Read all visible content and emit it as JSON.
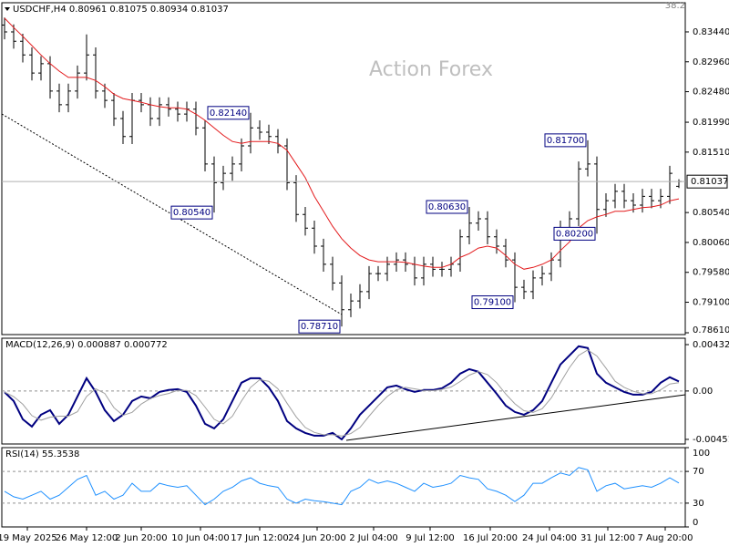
{
  "chart_data": [
    {
      "type": "ohlc",
      "title": "USDCHF,H4  0.80961 0.81075 0.80934 0.81037",
      "watermark": "Action Forex",
      "corner_label": "38.2",
      "color": "#000000",
      "xlim": [
        -0.3,
        74.7
      ],
      "xticks": [
        {
          "value": 2.5,
          "label": "19 May 2025"
        },
        {
          "value": 9,
          "label": "26 May 12:00"
        },
        {
          "value": 15,
          "label": "2 Jun 20:00"
        },
        {
          "value": 21.5,
          "label": "10 Jun 04:00"
        },
        {
          "value": 28,
          "label": "17 Jun 12:00"
        },
        {
          "value": 34.3,
          "label": "24 Jun 20:00"
        },
        {
          "value": 40.5,
          "label": "2 Jul 04:00"
        },
        {
          "value": 46.7,
          "label": "9 Jul 12:00"
        },
        {
          "value": 53.3,
          "label": "16 Jul 20:00"
        },
        {
          "value": 59.8,
          "label": "24 Jul 04:00"
        },
        {
          "value": 66.2,
          "label": "31 Jul 12:00"
        },
        {
          "value": 72.5,
          "label": "7 Aug 20:00"
        }
      ],
      "ylim": [
        0.78581,
        0.83908
      ],
      "yticks": [
        {
          "value": 0.8344,
          "label": "0.83440"
        },
        {
          "value": 0.8296,
          "label": "0.82960"
        },
        {
          "value": 0.8248,
          "label": "0.82480"
        },
        {
          "value": 0.8199,
          "label": "0.81990"
        },
        {
          "value": 0.8151,
          "label": "0.81510"
        },
        {
          "value": 0.8054,
          "label": "0.80540"
        },
        {
          "value": 0.8006,
          "label": "0.80060"
        },
        {
          "value": 0.7958,
          "label": "0.79580"
        },
        {
          "value": 0.791,
          "label": "0.79100"
        },
        {
          "value": 0.7861,
          "label": "0.78610"
        }
      ],
      "last_price_line": true,
      "open": [
        0.8355,
        0.8344,
        0.8329,
        0.8307,
        0.8278,
        0.8293,
        0.8249,
        0.8227,
        0.8249,
        0.8278,
        0.8307,
        0.8249,
        0.8234,
        0.8205,
        0.8176,
        0.8234,
        0.8227,
        0.8205,
        0.8227,
        0.822,
        0.8212,
        0.822,
        0.819,
        0.8132,
        0.8102,
        0.8117,
        0.8132,
        0.8161,
        0.819,
        0.8183,
        0.8176,
        0.8161,
        0.8102,
        0.8051,
        0.8029,
        0.8,
        0.7971,
        0.7941,
        0.7898,
        0.7912,
        0.7927,
        0.7956,
        0.7956,
        0.7971,
        0.7978,
        0.7971,
        0.7949,
        0.7971,
        0.7963,
        0.7963,
        0.7971,
        0.8015,
        0.8037,
        0.8044,
        0.8015,
        0.8,
        0.7978,
        0.7934,
        0.7927,
        0.7949,
        0.7956,
        0.7978,
        0.8029,
        0.8044,
        0.8124,
        0.8132,
        0.8059,
        0.8073,
        0.8088,
        0.8073,
        0.8066,
        0.808,
        0.8073,
        0.808,
        0.80961
      ],
      "high": [
        0.8367,
        0.8356,
        0.8341,
        0.8319,
        0.8305,
        0.8305,
        0.8261,
        0.8261,
        0.829,
        0.834,
        0.8319,
        0.8261,
        0.8246,
        0.8217,
        0.8246,
        0.8246,
        0.8239,
        0.8239,
        0.8239,
        0.8232,
        0.8232,
        0.8232,
        0.8202,
        0.8144,
        0.8129,
        0.8144,
        0.8173,
        0.8214,
        0.8202,
        0.8195,
        0.8188,
        0.8173,
        0.8114,
        0.8063,
        0.8041,
        0.8012,
        0.7983,
        0.7953,
        0.7924,
        0.7939,
        0.7968,
        0.7968,
        0.7983,
        0.799,
        0.799,
        0.7983,
        0.7983,
        0.7983,
        0.7975,
        0.7983,
        0.8027,
        0.8063,
        0.8056,
        0.8056,
        0.8027,
        0.8012,
        0.799,
        0.7946,
        0.7961,
        0.7968,
        0.799,
        0.8041,
        0.8056,
        0.8136,
        0.817,
        0.8144,
        0.8085,
        0.81,
        0.81,
        0.8085,
        0.8092,
        0.8092,
        0.8092,
        0.8129,
        0.81075
      ],
      "low": [
        0.8332,
        0.8317,
        0.8295,
        0.8266,
        0.8266,
        0.8237,
        0.8215,
        0.8215,
        0.8237,
        0.8266,
        0.8237,
        0.8222,
        0.8193,
        0.8164,
        0.8164,
        0.8215,
        0.8193,
        0.8193,
        0.8208,
        0.82,
        0.82,
        0.8178,
        0.812,
        0.8054,
        0.809,
        0.8105,
        0.812,
        0.8149,
        0.8171,
        0.8164,
        0.8149,
        0.809,
        0.8039,
        0.8017,
        0.7988,
        0.7959,
        0.7929,
        0.7871,
        0.7886,
        0.79,
        0.7915,
        0.7944,
        0.7944,
        0.7959,
        0.7959,
        0.7937,
        0.7937,
        0.7951,
        0.7951,
        0.7951,
        0.7959,
        0.8003,
        0.8025,
        0.8003,
        0.7988,
        0.7966,
        0.791,
        0.7915,
        0.7915,
        0.7937,
        0.7944,
        0.7966,
        0.8017,
        0.8032,
        0.8112,
        0.802,
        0.8047,
        0.8061,
        0.8061,
        0.8054,
        0.8054,
        0.8061,
        0.8061,
        0.8068,
        0.80934
      ],
      "close": [
        0.8344,
        0.8329,
        0.8307,
        0.8278,
        0.8293,
        0.8249,
        0.8227,
        0.8249,
        0.8278,
        0.8307,
        0.8249,
        0.8234,
        0.8205,
        0.8176,
        0.8234,
        0.8227,
        0.8205,
        0.8227,
        0.822,
        0.8212,
        0.822,
        0.819,
        0.8132,
        0.8102,
        0.8117,
        0.8132,
        0.8161,
        0.819,
        0.8183,
        0.8176,
        0.8161,
        0.8102,
        0.8051,
        0.8029,
        0.8,
        0.7971,
        0.7941,
        0.7898,
        0.7912,
        0.7927,
        0.7956,
        0.7956,
        0.7971,
        0.7978,
        0.7971,
        0.7949,
        0.7971,
        0.7963,
        0.7963,
        0.7971,
        0.8015,
        0.8037,
        0.8044,
        0.8015,
        0.8,
        0.7978,
        0.7934,
        0.7927,
        0.7949,
        0.7956,
        0.7978,
        0.8029,
        0.8044,
        0.8124,
        0.8132,
        0.8059,
        0.8073,
        0.8088,
        0.8073,
        0.8066,
        0.808,
        0.8073,
        0.808,
        0.8117,
        0.81037
      ],
      "moving_average": {
        "color": "#e31a1c",
        "values": [
          0.8366,
          0.8351,
          0.8337,
          0.8322,
          0.8307,
          0.8293,
          0.8281,
          0.8271,
          0.8271,
          0.8271,
          0.8266,
          0.8256,
          0.8244,
          0.8237,
          0.8234,
          0.8231,
          0.8227,
          0.8224,
          0.8222,
          0.8222,
          0.822,
          0.8212,
          0.8202,
          0.819,
          0.8178,
          0.8168,
          0.8165,
          0.8168,
          0.8168,
          0.8168,
          0.8165,
          0.8154,
          0.8132,
          0.811,
          0.808,
          0.8056,
          0.8032,
          0.8012,
          0.7997,
          0.7985,
          0.7978,
          0.7975,
          0.7975,
          0.7975,
          0.7974,
          0.7971,
          0.7968,
          0.7966,
          0.7966,
          0.7971,
          0.7982,
          0.7988,
          0.7997,
          0.8,
          0.7997,
          0.7985,
          0.7971,
          0.7963,
          0.7966,
          0.7971,
          0.7978,
          0.7993,
          0.8007,
          0.8029,
          0.8041,
          0.8047,
          0.8051,
          0.8056,
          0.8056,
          0.8059,
          0.8062,
          0.8063,
          0.8066,
          0.8073,
          0.8076
        ]
      },
      "annotations": [
        {
          "x": 27,
          "value": 0.8214,
          "label": "0.82140"
        },
        {
          "x": 23,
          "value": 0.8054,
          "label": "0.80540"
        },
        {
          "x": 37,
          "value": 0.7871,
          "label": "0.78710"
        },
        {
          "x": 51,
          "value": 0.8063,
          "label": "0.80630"
        },
        {
          "x": 56,
          "value": 0.791,
          "label": "0.79100"
        },
        {
          "x": 64,
          "value": 0.817,
          "label": "0.81700"
        },
        {
          "x": 65,
          "value": 0.802,
          "label": "0.80200"
        }
      ]
    },
    {
      "type": "line",
      "title": "MACD(12,26,9) 0.000887 0.000772",
      "ylim": [
        -0.00494,
        0.00492
      ],
      "yticks": [
        0.004325,
        {
          "value": 0,
          "label": "0.00"
        },
        -0.004511
      ],
      "zero_line": true,
      "series": [
        {
          "color": "#000080",
          "width": 2,
          "values": [
            -0.0001,
            -0.00094,
            -0.00264,
            -0.00332,
            -0.00221,
            -0.00179,
            -0.00306,
            -0.00221,
            -0.00051,
            0.00119,
            -9e-05,
            -0.00179,
            -0.00281,
            -0.00221,
            -0.00094,
            -0.00051,
            -0.00068,
            -9e-05,
            9e-05,
            0.00017,
            -9e-05,
            -0.00136,
            -0.00306,
            -0.00349,
            -0.00264,
            -0.00094,
            0.00077,
            0.00119,
            0.00119,
            0.00034,
            -0.00094,
            -0.00281,
            -0.00349,
            -0.00391,
            -0.00417,
            -0.00417,
            -0.00391,
            -0.00451,
            -0.00349,
            -0.00221,
            -0.00136,
            -0.00051,
            0.00034,
            0.00051,
            0.00017,
            -9e-05,
            9e-05,
            9e-05,
            0.00026,
            0.00077,
            0.00162,
            0.00204,
            0.00179,
            0.00077,
            -0.00026,
            -0.00136,
            -0.00196,
            -0.00221,
            -0.00179,
            -0.00094,
            0.00077,
            0.00247,
            0.00332,
            0.00417,
            0.004,
            0.00162,
            0.00077,
            0.00034,
            -9e-05,
            -0.00034,
            -0.00034,
            -9e-05,
            0.00077,
            0.00128,
            0.000887
          ]
        },
        {
          "color": "#a0a0a0",
          "width": 1,
          "values": [
            -0.0001,
            -0.00052,
            -0.00123,
            -0.0023,
            -0.00272,
            -0.00244,
            -0.00235,
            -0.00235,
            -0.00193,
            -0.00051,
            0.0002,
            -0.00023,
            -0.00156,
            -0.00227,
            -0.00199,
            -0.00122,
            -0.00071,
            -0.00043,
            -0.00023,
            6e-05,
            6e-05,
            -0.00043,
            -0.0015,
            -0.00264,
            -0.00306,
            -0.00236,
            -0.00094,
            0.00034,
            0.00105,
            0.00091,
            0.0002,
            -0.00114,
            -0.00241,
            -0.0034,
            -0.00386,
            -0.00408,
            -0.00408,
            -0.0042,
            -0.00397,
            -0.0034,
            -0.00235,
            -0.00136,
            -0.00051,
            0.00011,
            0.00034,
            0.0002,
            6e-05,
            3e-05,
            0.00015,
            0.00037,
            0.00088,
            0.00148,
            0.00182,
            0.00153,
            0.00077,
            -0.00028,
            -0.00119,
            -0.00184,
            -0.00199,
            -0.00165,
            -0.00065,
            0.00077,
            0.00219,
            0.00332,
            0.00383,
            0.00326,
            0.00213,
            0.00091,
            0.00034,
            -3e-05,
            -0.00026,
            -0.00026,
            0.00011,
            0.00065,
            0.000772
          ]
        }
      ]
    },
    {
      "type": "line",
      "title": "RSI(14) 55.3538",
      "ylim": [
        0,
        100
      ],
      "yticks": [
        100,
        70,
        30,
        0
      ],
      "grid": true,
      "series": [
        {
          "color": "#1e90ff",
          "width": 1,
          "values": [
            45,
            38,
            35,
            40,
            45,
            35,
            40,
            50,
            60,
            65,
            40,
            45,
            35,
            40,
            55,
            45,
            45,
            55,
            52,
            50,
            52,
            40,
            28,
            35,
            45,
            50,
            58,
            62,
            55,
            52,
            50,
            35,
            30,
            35,
            33,
            32,
            30,
            28,
            45,
            50,
            60,
            55,
            58,
            55,
            50,
            45,
            55,
            50,
            52,
            55,
            65,
            62,
            60,
            48,
            45,
            40,
            32,
            40,
            55,
            55,
            62,
            68,
            65,
            75,
            72,
            45,
            52,
            55,
            48,
            50,
            52,
            50,
            55,
            62,
            55.35
          ]
        }
      ]
    }
  ]
}
